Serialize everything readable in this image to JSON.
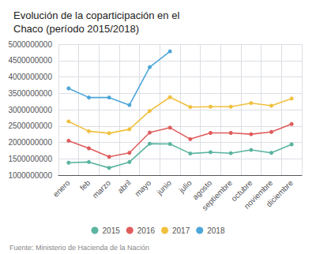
{
  "chart_data": {
    "type": "line",
    "title": "Evolución de la coparticipación en el\nChaco (período 2015/2018)",
    "categories": [
      "enero",
      "feb",
      "marzo",
      "abril",
      "mayo",
      "junio",
      "julio",
      "agosto",
      "septiembre",
      "octubre",
      "noviembre",
      "diciembre"
    ],
    "series": [
      {
        "name": "2015",
        "color": "#5ab4a0",
        "values": [
          1380000000,
          1400000000,
          1220000000,
          1400000000,
          1960000000,
          1950000000,
          1660000000,
          1700000000,
          1670000000,
          1770000000,
          1680000000,
          1940000000
        ]
      },
      {
        "name": "2016",
        "color": "#e05c5c",
        "values": [
          2050000000,
          1820000000,
          1560000000,
          1680000000,
          2300000000,
          2450000000,
          2100000000,
          2290000000,
          2290000000,
          2250000000,
          2320000000,
          2560000000
        ]
      },
      {
        "name": "2017",
        "color": "#f0c040",
        "values": [
          2640000000,
          2340000000,
          2280000000,
          2400000000,
          2960000000,
          3380000000,
          3080000000,
          3090000000,
          3090000000,
          3200000000,
          3120000000,
          3340000000
        ]
      },
      {
        "name": "2018",
        "color": "#4da6d8",
        "values": [
          3650000000,
          3370000000,
          3370000000,
          3140000000,
          4300000000,
          4780000000,
          null,
          null,
          null,
          null,
          null,
          null
        ]
      }
    ],
    "ylim": [
      1000000000,
      5000000000
    ],
    "yticks": [
      1000000000,
      1500000000,
      2000000000,
      2500000000,
      3000000000,
      3500000000,
      4000000000,
      4500000000,
      5000000000
    ],
    "grid": true,
    "legend": "bottom",
    "marker": "circle",
    "annotations": [
      "Fuente: Ministerio de Hacienda de la Nación"
    ]
  }
}
